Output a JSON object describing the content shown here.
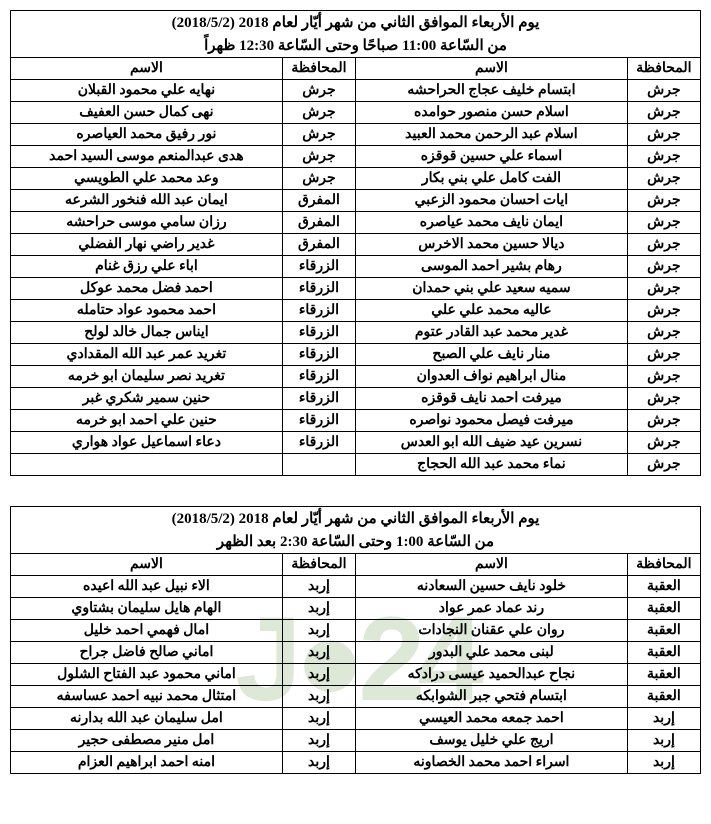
{
  "headers": {
    "gov": "المحافظة",
    "name": "الاسم"
  },
  "tables": [
    {
      "title": "يوم الأربعاء الموافق الثاني من شهر أيّار لعام 2018 (2018/5/2)",
      "subtitle": "من السّاعة 11:00 صباحًا وحتى السّاعة 12:30 ظهراً",
      "rows": [
        {
          "g1": "جرش",
          "n1": "ابتسام خليف عجاج الحراحشه",
          "g2": "جرش",
          "n2": "نهايه علي محمود القبلان"
        },
        {
          "g1": "جرش",
          "n1": "اسلام حسن منصور حوامده",
          "g2": "جرش",
          "n2": "نهى كمال حسن العفيف"
        },
        {
          "g1": "جرش",
          "n1": "اسلام عبد الرحمن محمد العبيد",
          "g2": "جرش",
          "n2": "نور رفيق محمد العياصره"
        },
        {
          "g1": "جرش",
          "n1": "اسماء علي حسين قوقزه",
          "g2": "جرش",
          "n2": "هدى عبدالمنعم موسى السيد احمد"
        },
        {
          "g1": "جرش",
          "n1": "الفت كامل علي بني بكار",
          "g2": "جرش",
          "n2": "وعد محمد علي الطويسي"
        },
        {
          "g1": "جرش",
          "n1": "ايات احسان محمود الزعبي",
          "g2": "المفرق",
          "n2": "ايمان عبد الله فنخور الشرعه"
        },
        {
          "g1": "جرش",
          "n1": "ايمان نايف محمد عياصره",
          "g2": "المفرق",
          "n2": "رزان سامي موسى حراحشه"
        },
        {
          "g1": "جرش",
          "n1": "ديالا حسين محمد الاخرس",
          "g2": "المفرق",
          "n2": "غدير راضي نهار الفضلي"
        },
        {
          "g1": "جرش",
          "n1": "رهام بشير احمد الموسى",
          "g2": "الزرقاء",
          "n2": "اباء علي رزق غنام"
        },
        {
          "g1": "جرش",
          "n1": "سميه سعيد علي بني حمدان",
          "g2": "الزرقاء",
          "n2": "احمد فضل محمد عوكل"
        },
        {
          "g1": "جرش",
          "n1": "عاليه محمد علي علي",
          "g2": "الزرقاء",
          "n2": "احمد محمود عواد حتامله"
        },
        {
          "g1": "جرش",
          "n1": "غدير محمد عبد القادر عتوم",
          "g2": "الزرقاء",
          "n2": "ايناس جمال خالد لولح"
        },
        {
          "g1": "جرش",
          "n1": "منار نايف علي الصبح",
          "g2": "الزرقاء",
          "n2": "تغريد عمر عبد الله المقدادي"
        },
        {
          "g1": "جرش",
          "n1": "منال ابراهيم نواف العدوان",
          "g2": "الزرقاء",
          "n2": "تغريد نصر سليمان ابو خرمه"
        },
        {
          "g1": "جرش",
          "n1": "ميرفت احمد نايف قوقزه",
          "g2": "الزرقاء",
          "n2": "حنين سمير شكري غبر"
        },
        {
          "g1": "جرش",
          "n1": "ميرفت فيصل محمود نواصره",
          "g2": "الزرقاء",
          "n2": "حنين علي احمد ابو خرمه"
        },
        {
          "g1": "جرش",
          "n1": "نسرين عيد ضيف الله ابو العدس",
          "g2": "الزرقاء",
          "n2": "دعاء اسماعيل عواد هواري"
        },
        {
          "g1": "جرش",
          "n1": "نماء محمد عبد الله الحجاج",
          "g2": "",
          "n2": ""
        }
      ]
    },
    {
      "title": "يوم الأربعاء الموافق الثاني من شهر أيّار لعام 2018 (2018/5/2)",
      "subtitle": "من السّاعة 1:00 وحتى السّاعة 2:30 بعد الظهر",
      "rows": [
        {
          "g1": "العقبة",
          "n1": "خلود نايف حسين السعادنه",
          "g2": "إربد",
          "n2": "الاء نبيل عبد الله اعيده"
        },
        {
          "g1": "العقبة",
          "n1": "رند عماد عمر عواد",
          "g2": "إربد",
          "n2": "الهام هايل سليمان بشتاوي"
        },
        {
          "g1": "العقبة",
          "n1": "روان علي عقنان النجادات",
          "g2": "إربد",
          "n2": "امال فهمي احمد خليل"
        },
        {
          "g1": "العقبة",
          "n1": "لبنى محمد علي البدور",
          "g2": "إربد",
          "n2": "اماني صالح فاضل جراح"
        },
        {
          "g1": "العقبة",
          "n1": "نجاح عبدالحميد عيسى درادكه",
          "g2": "إربد",
          "n2": "اماني محمود عبد الفتاح الشلول"
        },
        {
          "g1": "العقبة",
          "n1": "ابتسام فتحي جبر الشوابكه",
          "g2": "إربد",
          "n2": "امتثال محمد نبيه احمد عساسفه"
        },
        {
          "g1": "إربد",
          "n1": "احمد جمعه محمد العيسي",
          "g2": "إربد",
          "n2": "امل سليمان عبد الله بدارنه"
        },
        {
          "g1": "إربد",
          "n1": "اريج علي خليل يوسف",
          "g2": "إربد",
          "n2": "امل منير مصطفى حجير"
        },
        {
          "g1": "إربد",
          "n1": "اسراء احمد محمد الخصاونه",
          "g2": "إربد",
          "n2": "امنه احمد ابراهيم العزام"
        }
      ]
    }
  ]
}
